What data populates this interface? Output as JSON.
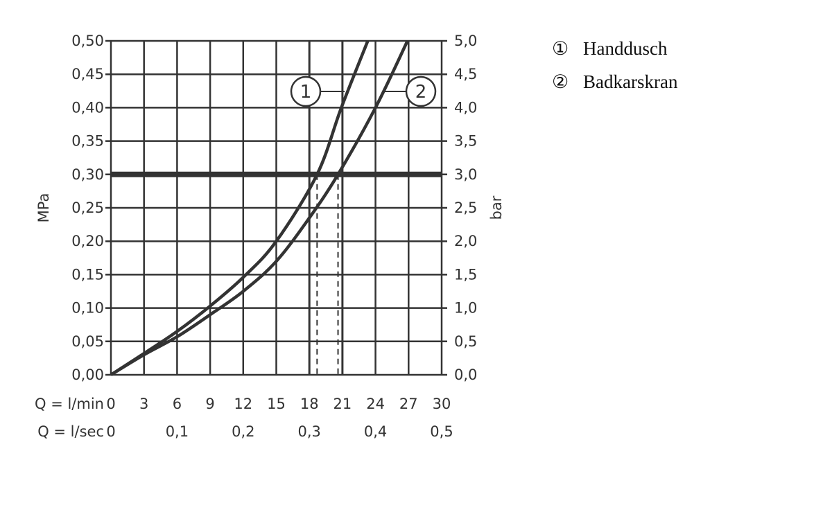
{
  "chart_data": {
    "type": "line",
    "xlabel_rows": [
      "Q = l/min",
      "Q = l/sec"
    ],
    "ylabel_left": "MPa",
    "ylabel_right": "bar",
    "xlim": [
      0,
      30
    ],
    "ylim": [
      0,
      0.5
    ],
    "grid": true,
    "x_ticks_lmin": [
      "0",
      "3",
      "6",
      "9",
      "12",
      "15",
      "18",
      "21",
      "24",
      "27",
      "30"
    ],
    "x_ticks_lsec": [
      {
        "v": 0,
        "label": "0"
      },
      {
        "v": 6,
        "label": "0,1"
      },
      {
        "v": 12,
        "label": "0,2"
      },
      {
        "v": 18,
        "label": "0,3"
      },
      {
        "v": 24,
        "label": "0,4"
      },
      {
        "v": 30,
        "label": "0,5"
      }
    ],
    "y_ticks_left": [
      "0,00",
      "0,05",
      "0,10",
      "0,15",
      "0,20",
      "0,25",
      "0,30",
      "0,35",
      "0,40",
      "0,45",
      "0,50"
    ],
    "y_ticks_right": [
      "0,0",
      "0,5",
      "1,0",
      "1,5",
      "2,0",
      "2,5",
      "3,0",
      "3,5",
      "4,0",
      "4,5",
      "5,0"
    ],
    "reference_line": {
      "y": 0.3
    },
    "dashed_markers": [
      18.7,
      20.6
    ],
    "series": [
      {
        "id": "1",
        "name": "Handdusch",
        "x": [
          0,
          3,
          6,
          9,
          12,
          15,
          18.7,
          20.9,
          23.3
        ],
        "y": [
          0,
          0.032,
          0.065,
          0.103,
          0.146,
          0.2,
          0.3,
          0.4,
          0.5
        ]
      },
      {
        "id": "2",
        "name": "Badkarskran",
        "x": [
          0,
          3,
          6,
          9,
          12,
          15,
          18,
          20.6,
          24.0,
          26.9
        ],
        "y": [
          0,
          0.03,
          0.057,
          0.09,
          0.125,
          0.17,
          0.235,
          0.3,
          0.4,
          0.5
        ]
      }
    ],
    "legend": {
      "placement": "right",
      "entries": [
        {
          "marker": "①",
          "label": "Handdusch"
        },
        {
          "marker": "②",
          "label": "Badkarskran"
        }
      ]
    }
  }
}
